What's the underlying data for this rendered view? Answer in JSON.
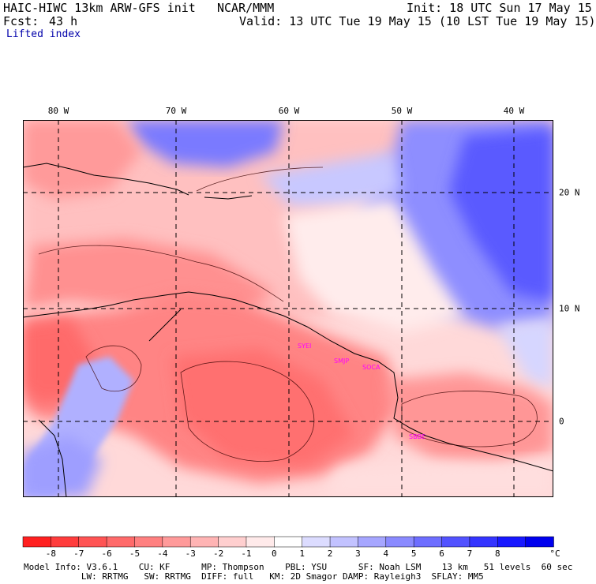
{
  "header": {
    "model": "HAIC-HIWC 13km ARW-GFS init",
    "org": "NCAR/MMM",
    "init": "Init: 18 UTC Sun 17 May 15",
    "fcst_label": "Fcst:",
    "fcst_value": "43 h",
    "valid": "Valid: 13 UTC Tue 19 May 15 (10 LST Tue 19 May 15)",
    "field": "Lifted index"
  },
  "map": {
    "lon_labels": [
      "80 W",
      "70 W",
      "60 W",
      "50 W",
      "40 W"
    ],
    "lat_labels": [
      "20 N",
      "10 N",
      "0"
    ],
    "stations": [
      "SYEI",
      "SMJP",
      "SOCA",
      "SBBE"
    ]
  },
  "colorbar": {
    "labels": [
      "-8",
      "-7",
      "-6",
      "-5",
      "-4",
      "-3",
      "-2",
      "-1",
      "0",
      "1",
      "2",
      "3",
      "4",
      "5",
      "6",
      "7",
      "8"
    ],
    "unit": "°C",
    "colors": [
      "#ff2020",
      "#ff3c3c",
      "#ff5454",
      "#ff6a6a",
      "#ff8080",
      "#ff9a9a",
      "#ffb4b4",
      "#ffcfcf",
      "#ffeaea",
      "#ffffff",
      "#dcdcff",
      "#c2c2ff",
      "#a6a6ff",
      "#8a8aff",
      "#6e6eff",
      "#5252ff",
      "#3434ff",
      "#1818ff",
      "#0000ee"
    ]
  },
  "footer": {
    "line1": "Model Info: V3.6.1    CU: KF      MP: Thompson    PBL: YSU      SF: Noah LSM    13 km   51 levels  60 sec",
    "line2": "           LW: RRTMG   SW: RRTMG  DIFF: full   KM: 2D Smagor DAMP: Rayleigh3  SFLAY: MM5"
  }
}
